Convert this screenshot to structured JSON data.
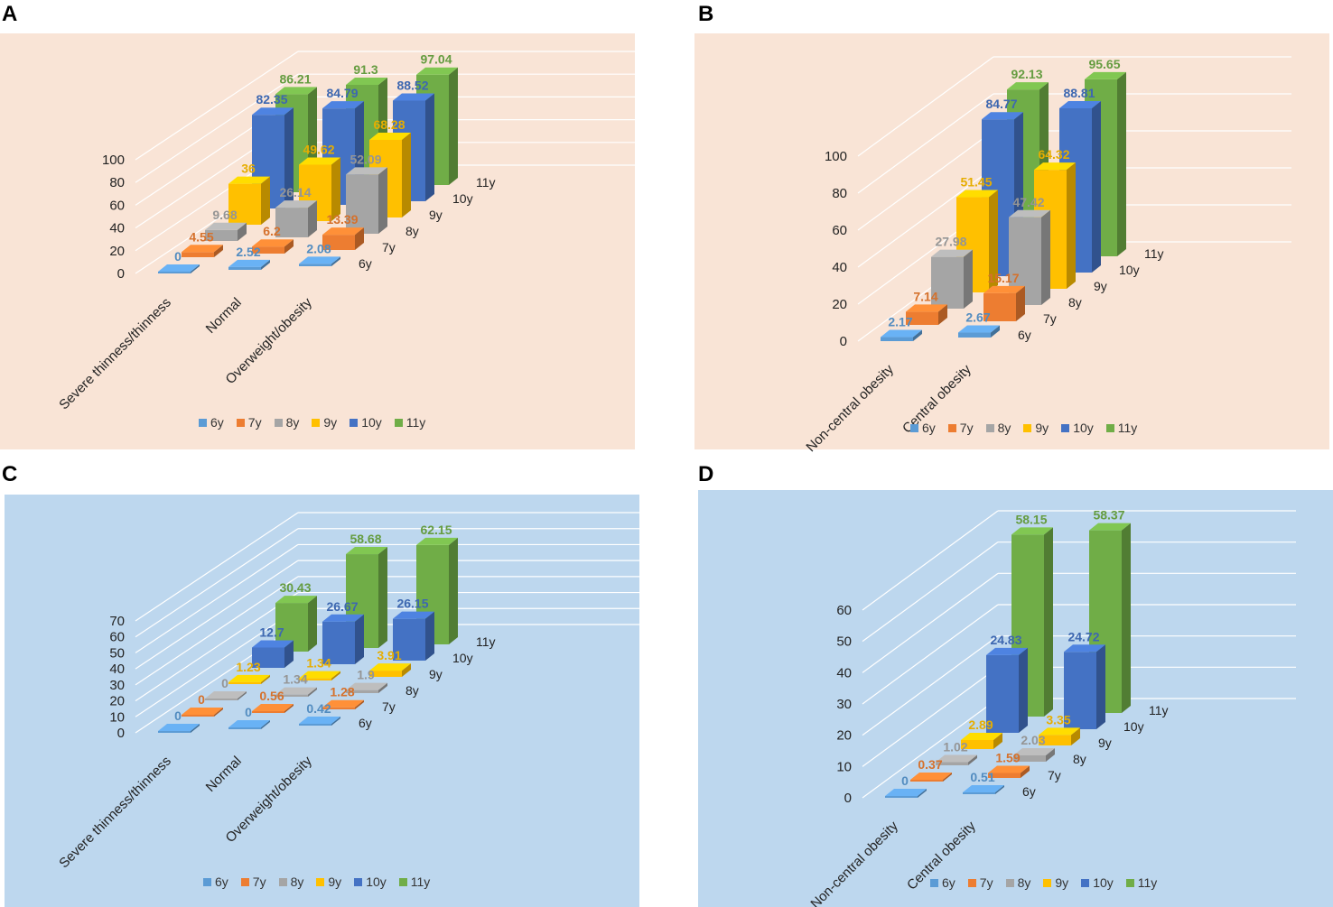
{
  "panel_labels": [
    "A",
    "B",
    "C",
    "D"
  ],
  "legend": [
    {
      "label": "6y",
      "color": "#5b9bd5"
    },
    {
      "label": "7y",
      "color": "#ed7d31"
    },
    {
      "label": "8y",
      "color": "#a5a5a5"
    },
    {
      "label": "9y",
      "color": "#ffc000"
    },
    {
      "label": "10y",
      "color": "#4472c4"
    },
    {
      "label": "11y",
      "color": "#70ad47"
    }
  ],
  "chart_data": [
    {
      "panel": "A",
      "type": "bar3d",
      "categories": [
        "Severe thinness/thinness",
        "Normal",
        "Overweight/obesity"
      ],
      "depth_labels": [
        "6y",
        "7y",
        "8y",
        "9y",
        "10y",
        "11y"
      ],
      "y_ticks": [
        "0",
        "20",
        "40",
        "60",
        "80",
        "100"
      ],
      "ylim": [
        0,
        100
      ],
      "series": [
        {
          "name": "6y",
          "values": [
            0,
            2.52,
            2.08
          ],
          "labels": [
            "0",
            "2.52",
            "2.08"
          ]
        },
        {
          "name": "7y",
          "values": [
            4.55,
            6.2,
            13.39
          ],
          "labels": [
            "4.55",
            "6.2",
            "13.39"
          ]
        },
        {
          "name": "8y",
          "values": [
            9.68,
            26.14,
            52.09
          ],
          "labels": [
            "9.68",
            "26.14",
            "52.09"
          ]
        },
        {
          "name": "9y",
          "values": [
            36,
            49.62,
            68.28
          ],
          "labels": [
            "36",
            "49.62",
            "68.28"
          ]
        },
        {
          "name": "10y",
          "values": [
            82.35,
            84.79,
            88.52
          ],
          "labels": [
            "82.35",
            "84.79",
            "88.52"
          ]
        },
        {
          "name": "11y",
          "values": [
            86.21,
            91.3,
            97.04
          ],
          "labels": [
            "86.21",
            "91.3",
            "97.04"
          ]
        }
      ]
    },
    {
      "panel": "B",
      "type": "bar3d",
      "categories": [
        "Non-central obesity",
        "Central  obesity"
      ],
      "depth_labels": [
        "6y",
        "7y",
        "8y",
        "9y",
        "10y",
        "11y"
      ],
      "y_ticks": [
        "0",
        "20",
        "40",
        "60",
        "80",
        "100"
      ],
      "ylim": [
        0,
        100
      ],
      "series": [
        {
          "name": "6y",
          "values": [
            2.17,
            2.67
          ],
          "labels": [
            "2.17",
            "2.67"
          ]
        },
        {
          "name": "7y",
          "values": [
            7.14,
            15.17
          ],
          "labels": [
            "7.14",
            "15.17"
          ]
        },
        {
          "name": "8y",
          "values": [
            27.98,
            47.42
          ],
          "labels": [
            "27.98",
            "47.42"
          ]
        },
        {
          "name": "9y",
          "values": [
            51.45,
            64.32
          ],
          "labels": [
            "51.45",
            "64.32"
          ]
        },
        {
          "name": "10y",
          "values": [
            84.77,
            88.81
          ],
          "labels": [
            "84.77",
            "88.81"
          ]
        },
        {
          "name": "11y",
          "values": [
            92.13,
            95.65
          ],
          "labels": [
            "92.13",
            "95.65"
          ]
        }
      ]
    },
    {
      "panel": "C",
      "type": "bar3d",
      "categories": [
        "Severe thinness/thinness",
        "Normal",
        "Overweight/obesity"
      ],
      "depth_labels": [
        "6y",
        "7y",
        "8y",
        "9y",
        "10y",
        "11y"
      ],
      "y_ticks": [
        "0",
        "10",
        "20",
        "30",
        "40",
        "50",
        "60",
        "70"
      ],
      "ylim": [
        0,
        70
      ],
      "series": [
        {
          "name": "6y",
          "values": [
            0,
            0,
            0.42
          ],
          "labels": [
            "0",
            "0",
            "0.42"
          ]
        },
        {
          "name": "7y",
          "values": [
            0,
            0.56,
            1.28
          ],
          "labels": [
            "0",
            "0.56",
            "1.28"
          ]
        },
        {
          "name": "8y",
          "values": [
            0,
            1.34,
            1.9
          ],
          "labels": [
            "0",
            "1.34",
            "1.9"
          ]
        },
        {
          "name": "9y",
          "values": [
            1.23,
            1.34,
            3.91
          ],
          "labels": [
            "1.23",
            "1.34",
            "3.91"
          ]
        },
        {
          "name": "10y",
          "values": [
            12.7,
            26.67,
            26.15
          ],
          "labels": [
            "12.7",
            "26.67",
            "26.15"
          ]
        },
        {
          "name": "11y",
          "values": [
            30.43,
            58.68,
            62.15
          ],
          "labels": [
            "30.43",
            "58.68",
            "62.15"
          ]
        }
      ]
    },
    {
      "panel": "D",
      "type": "bar3d",
      "categories": [
        "Non-central obesity",
        "Central  obesity"
      ],
      "depth_labels": [
        "6y",
        "7y",
        "8y",
        "9y",
        "10y",
        "11y"
      ],
      "y_ticks": [
        "0",
        "10",
        "20",
        "30",
        "40",
        "50",
        "60"
      ],
      "ylim": [
        0,
        60
      ],
      "series": [
        {
          "name": "6y",
          "values": [
            0,
            0.51
          ],
          "labels": [
            "0",
            "0.51"
          ]
        },
        {
          "name": "7y",
          "values": [
            0.37,
            1.59
          ],
          "labels": [
            "0.37",
            "1.59"
          ]
        },
        {
          "name": "8y",
          "values": [
            1.02,
            2.03
          ],
          "labels": [
            "1.02",
            "2.03"
          ]
        },
        {
          "name": "9y",
          "values": [
            2.89,
            3.35
          ],
          "labels": [
            "2.89",
            "3.35"
          ]
        },
        {
          "name": "10y",
          "values": [
            24.83,
            24.72
          ],
          "labels": [
            "24.83",
            "24.72"
          ]
        },
        {
          "name": "11y",
          "values": [
            58.15,
            58.37
          ],
          "labels": [
            "58.15",
            "58.37"
          ]
        }
      ]
    }
  ]
}
